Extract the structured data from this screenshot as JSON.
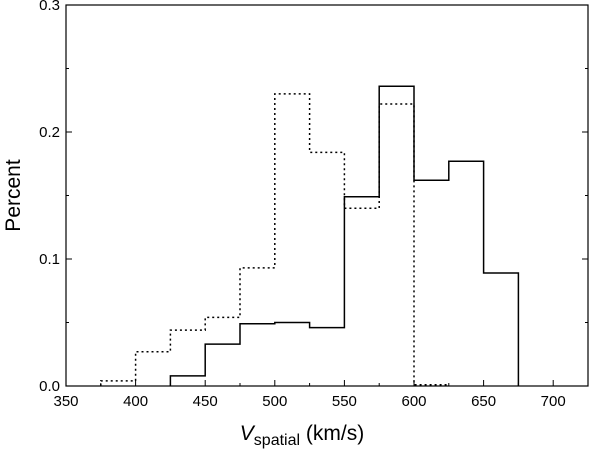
{
  "chart_data": {
    "type": "histogram",
    "xlim": [
      350,
      725
    ],
    "ylim": [
      0,
      0.3
    ],
    "xticks": [
      350,
      400,
      450,
      500,
      550,
      600,
      650,
      700
    ],
    "yticks": [
      0.0,
      0.1,
      0.2,
      0.3
    ],
    "xtick_labels": [
      "350",
      "400",
      "450",
      "500",
      "550",
      "600",
      "650",
      "700"
    ],
    "ytick_labels": [
      "0.0",
      "0.1",
      "0.2",
      "0.3"
    ],
    "xlabel_main": "V",
    "xlabel_sub": "spatial",
    "xlabel_units": " (km/s)",
    "ylabel": "Percent",
    "bin_width": 25,
    "series": [
      {
        "line_style": "solid",
        "bin_starts": [
          425,
          450,
          475,
          500,
          525,
          550,
          575,
          600,
          625,
          650
        ],
        "values": [
          0.008,
          0.033,
          0.049,
          0.05,
          0.046,
          0.149,
          0.236,
          0.162,
          0.177,
          0.089
        ]
      },
      {
        "line_style": "dotted",
        "bin_starts": [
          375,
          400,
          425,
          450,
          475,
          500,
          525,
          550,
          575,
          600
        ],
        "values": [
          0.004,
          0.027,
          0.044,
          0.054,
          0.093,
          0.23,
          0.184,
          0.14,
          0.222,
          0.001
        ]
      }
    ],
    "grid": false,
    "legend": "none"
  }
}
